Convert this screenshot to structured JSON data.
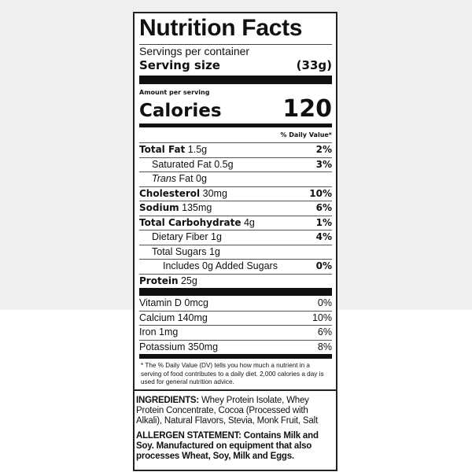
{
  "title": "Nutrition Facts",
  "servings_per_container": "Servings per container",
  "serving_size": {
    "label": "Serving size",
    "value": "(33g)"
  },
  "amount_per_serving": "Amount per serving",
  "calories": {
    "label": "Calories",
    "value": "120"
  },
  "daily_value_header": "% Daily Value*",
  "nutrients": [
    {
      "name": "Total Fat",
      "amount": "1.5g",
      "dv": "2%"
    },
    {
      "name": "Saturated Fat",
      "amount": "0.5g",
      "dv": "3%"
    },
    {
      "name": "Trans",
      "name2": "Fat 0g",
      "amount": "",
      "dv": ""
    },
    {
      "name": "Cholesterol",
      "amount": "30mg",
      "dv": "10%"
    },
    {
      "name": "Sodium",
      "amount": "135mg",
      "dv": "6%"
    },
    {
      "name": "Total Carbohydrate",
      "amount": "4g",
      "dv": "1%"
    },
    {
      "name": "Dietary Fiber",
      "amount": "1g",
      "dv": "4%"
    },
    {
      "name": "Total Sugars",
      "amount": "1g",
      "dv": ""
    },
    {
      "name": "Includes 0g Added Sugars",
      "amount": "",
      "dv": "0%"
    },
    {
      "name": "Protein",
      "amount": "25g",
      "dv": ""
    }
  ],
  "vitamins": [
    {
      "name": "Vitamin D 0mcg",
      "dv": "0%"
    },
    {
      "name": "Calcium 140mg",
      "dv": "10%"
    },
    {
      "name": "Iron 1mg",
      "dv": "6%"
    },
    {
      "name": "Potassium 350mg",
      "dv": "8%"
    }
  ],
  "footnote": "* The % Daily Value (DV) tells you how much a nutrient in a serving of food contributes to a daily diet. 2,000 calories a day is used for general nutrition advice.",
  "ingredients": {
    "label": "INGREDIENTS:",
    "text": " Whey Protein Isolate, Whey Protein Concentrate, Cocoa (Processed with Alkali), Natural Flavors, Stevia, Monk Fruit, Salt"
  },
  "allergen": {
    "label": "ALLERGEN STATEMENT:",
    "text": " Contains Milk and Soy. Manufactured on equipment that also processes Wheat, Soy, Milk and Eggs."
  }
}
